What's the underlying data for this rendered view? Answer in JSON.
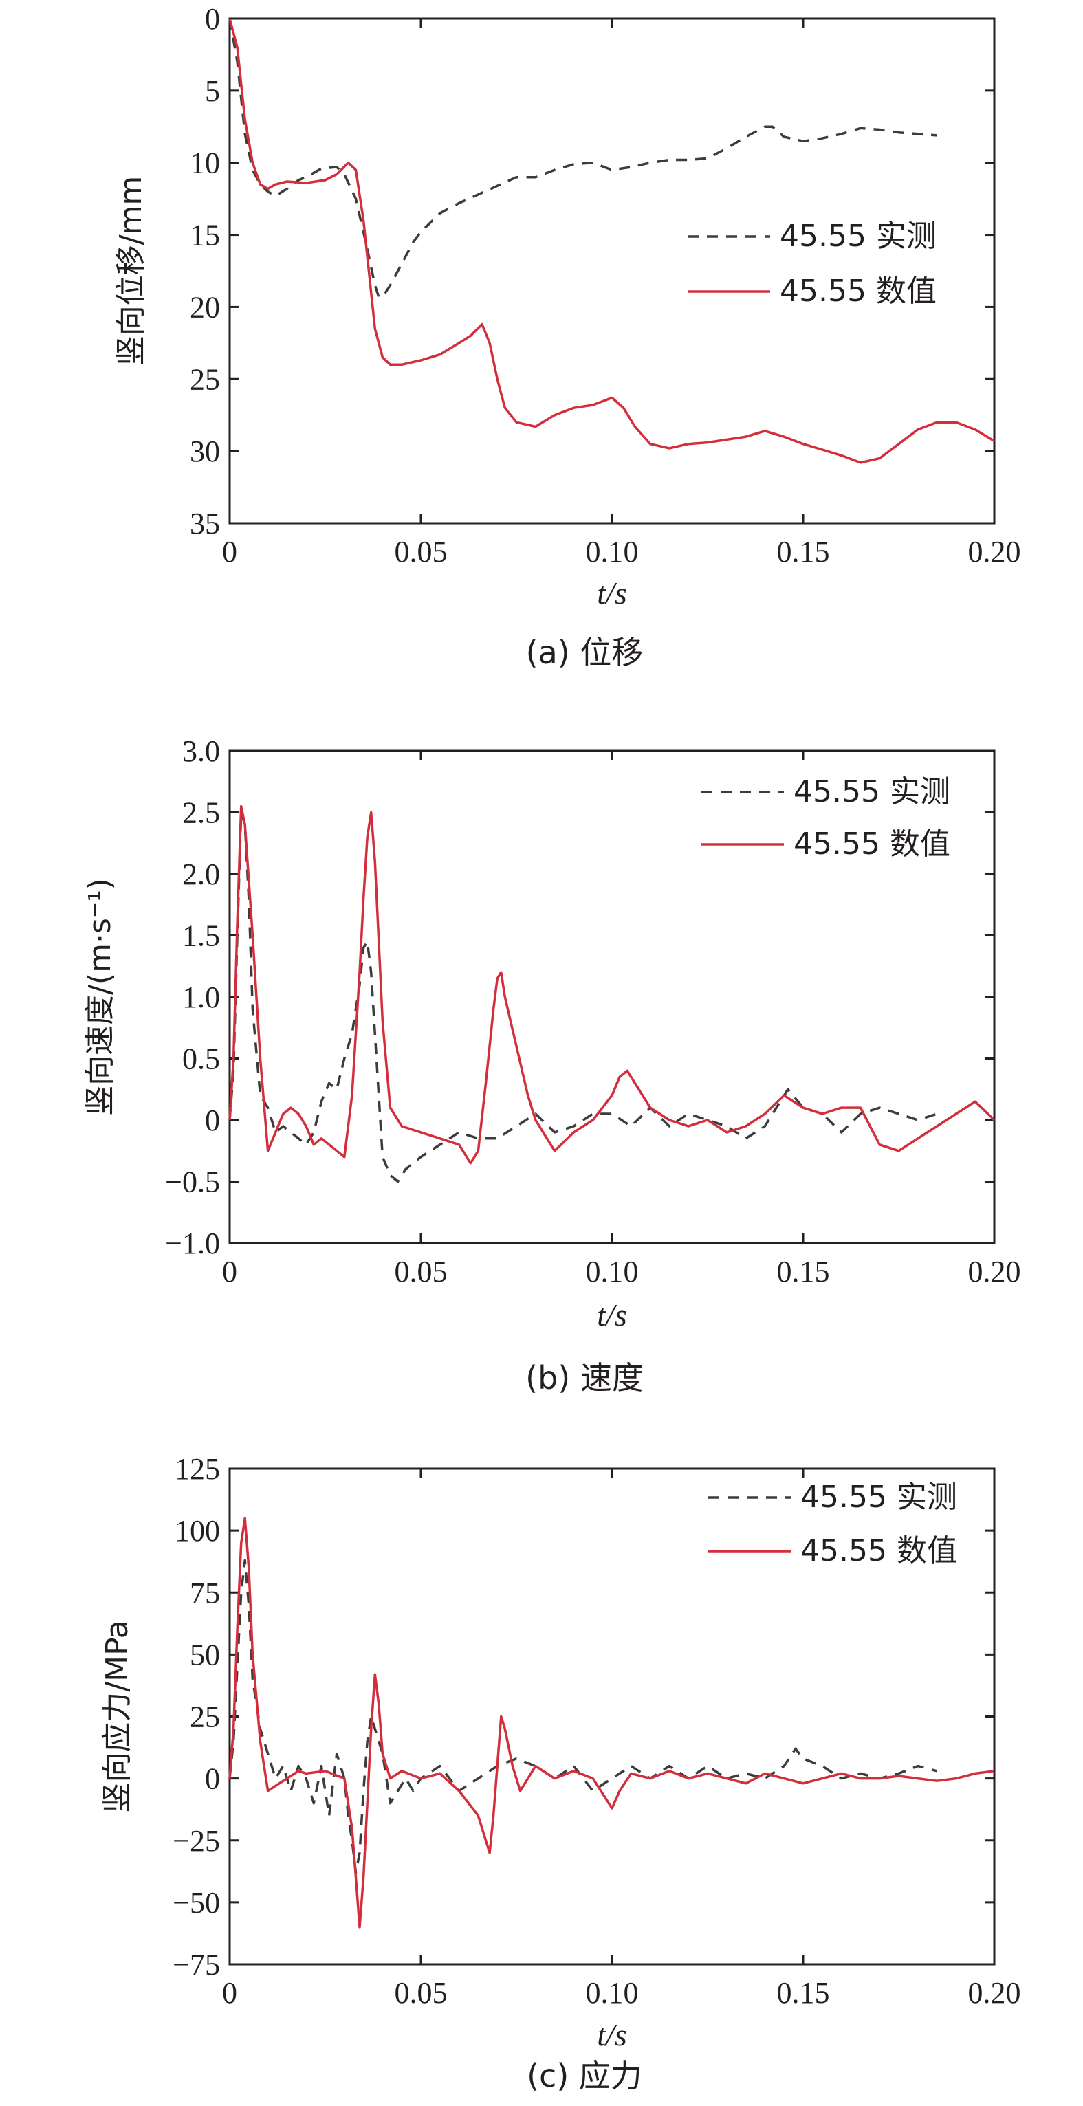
{
  "chart_data": [
    {
      "type": "line",
      "caption": "(a) 位移",
      "ylabel": "竖向位移/mm",
      "xlabel": "t/s",
      "xlim": [
        0,
        0.2
      ],
      "ylim": [
        0,
        35
      ],
      "y_inverted": true,
      "xticks": [
        0,
        0.05,
        0.1,
        0.15,
        0.2
      ],
      "xticklabels": [
        "0",
        "0.05",
        "0.10",
        "0.15",
        "0.20"
      ],
      "yticks": [
        0,
        5,
        10,
        15,
        20,
        25,
        30,
        35
      ],
      "yticklabels": [
        "0",
        "5",
        "10",
        "15",
        "20",
        "25",
        "30",
        "35"
      ],
      "legend_position": "right",
      "series": [
        {
          "name": "45.55 实测",
          "style": "dashed",
          "color": "#3c3c3c",
          "x": [
            0,
            0.002,
            0.004,
            0.006,
            0.008,
            0.01,
            0.012,
            0.015,
            0.018,
            0.02,
            0.024,
            0.028,
            0.03,
            0.033,
            0.036,
            0.038,
            0.039,
            0.04,
            0.042,
            0.045,
            0.048,
            0.05,
            0.055,
            0.06,
            0.065,
            0.07,
            0.075,
            0.08,
            0.085,
            0.09,
            0.095,
            0.1,
            0.105,
            0.11,
            0.115,
            0.12,
            0.125,
            0.13,
            0.135,
            0.14,
            0.142,
            0.145,
            0.15,
            0.155,
            0.16,
            0.165,
            0.17,
            0.175,
            0.18,
            0.185
          ],
          "values": [
            0,
            3,
            8,
            10.5,
            11.5,
            12,
            12.3,
            11.8,
            11.2,
            11,
            10.4,
            10.3,
            10.8,
            12.5,
            16,
            18.5,
            19.3,
            19.3,
            18.5,
            17,
            15.5,
            14.8,
            13.5,
            12.8,
            12.2,
            11.6,
            11,
            11,
            10.5,
            10.1,
            10,
            10.5,
            10.3,
            10,
            9.8,
            9.8,
            9.7,
            9,
            8.2,
            7.5,
            7.5,
            8.2,
            8.5,
            8.3,
            8,
            7.6,
            7.7,
            7.9,
            8,
            8.1
          ]
        },
        {
          "name": "45.55 数值",
          "style": "solid",
          "color": "#d42e3c",
          "x": [
            0,
            0.002,
            0.004,
            0.006,
            0.008,
            0.01,
            0.012,
            0.015,
            0.02,
            0.025,
            0.028,
            0.031,
            0.033,
            0.035,
            0.037,
            0.038,
            0.04,
            0.042,
            0.045,
            0.05,
            0.055,
            0.06,
            0.063,
            0.066,
            0.068,
            0.07,
            0.072,
            0.075,
            0.08,
            0.085,
            0.09,
            0.095,
            0.1,
            0.103,
            0.106,
            0.11,
            0.115,
            0.12,
            0.125,
            0.13,
            0.135,
            0.14,
            0.145,
            0.15,
            0.155,
            0.16,
            0.165,
            0.17,
            0.175,
            0.18,
            0.185,
            0.19,
            0.195,
            0.2
          ],
          "values": [
            0,
            2,
            7,
            10,
            11.5,
            11.8,
            11.5,
            11.3,
            11.4,
            11.2,
            10.8,
            10,
            10.5,
            14,
            19,
            21.5,
            23.5,
            24,
            24,
            23.7,
            23.3,
            22.5,
            22,
            21.2,
            22.5,
            25,
            27,
            28,
            28.3,
            27.5,
            27,
            26.8,
            26.3,
            27,
            28.3,
            29.5,
            29.8,
            29.5,
            29.4,
            29.2,
            29,
            28.6,
            29,
            29.5,
            29.9,
            30.3,
            30.8,
            30.5,
            29.5,
            28.5,
            28,
            28,
            28.5,
            29.3
          ]
        }
      ]
    },
    {
      "type": "line",
      "caption": "(b) 速度",
      "ylabel": "竖向速度/(m·s⁻¹)",
      "xlabel": "t/s",
      "xlim": [
        0,
        0.2
      ],
      "ylim": [
        -1,
        3
      ],
      "xticks": [
        0,
        0.05,
        0.1,
        0.15,
        0.2
      ],
      "xticklabels": [
        "0",
        "0.05",
        "0.10",
        "0.15",
        "0.20"
      ],
      "yticks": [
        -1,
        -0.5,
        0,
        0.5,
        1,
        1.5,
        2,
        2.5,
        3
      ],
      "yticklabels": [
        "−1.0",
        "−0.5",
        "0",
        "0.5",
        "1.0",
        "1.5",
        "2.0",
        "2.5",
        "3.0"
      ],
      "legend_position": "top-right",
      "series": [
        {
          "name": "45.55 实测",
          "style": "dashed",
          "color": "#3c3c3c",
          "x": [
            0,
            0.001,
            0.002,
            0.003,
            0.004,
            0.005,
            0.006,
            0.008,
            0.01,
            0.012,
            0.014,
            0.016,
            0.018,
            0.02,
            0.022,
            0.024,
            0.026,
            0.028,
            0.03,
            0.032,
            0.034,
            0.035,
            0.036,
            0.037,
            0.038,
            0.039,
            0.04,
            0.042,
            0.044,
            0.046,
            0.048,
            0.05,
            0.055,
            0.06,
            0.065,
            0.07,
            0.075,
            0.08,
            0.085,
            0.09,
            0.095,
            0.1,
            0.105,
            0.11,
            0.115,
            0.12,
            0.125,
            0.13,
            0.135,
            0.14,
            0.143,
            0.146,
            0.15,
            0.155,
            0.16,
            0.165,
            0.17,
            0.175,
            0.18,
            0.185
          ],
          "values": [
            0,
            0.4,
            1.5,
            2.5,
            2.4,
            1.8,
            0.9,
            0.2,
            0.1,
            -0.1,
            -0.05,
            -0.1,
            -0.15,
            -0.2,
            -0.1,
            0.15,
            0.3,
            0.25,
            0.5,
            0.7,
            1.1,
            1.4,
            1.45,
            1.2,
            0.7,
            0.2,
            -0.3,
            -0.45,
            -0.5,
            -0.4,
            -0.35,
            -0.3,
            -0.2,
            -0.1,
            -0.15,
            -0.15,
            -0.05,
            0.05,
            -0.1,
            -0.05,
            0.05,
            0.05,
            -0.05,
            0.1,
            -0.05,
            0.05,
            0.0,
            -0.05,
            -0.15,
            -0.05,
            0.1,
            0.25,
            0.1,
            0.05,
            -0.1,
            0.05,
            0.1,
            0.05,
            0.0,
            0.05
          ]
        },
        {
          "name": "45.55 数值",
          "style": "solid",
          "color": "#d42e3c",
          "x": [
            0,
            0.001,
            0.002,
            0.003,
            0.004,
            0.006,
            0.008,
            0.01,
            0.012,
            0.014,
            0.016,
            0.018,
            0.02,
            0.022,
            0.024,
            0.026,
            0.028,
            0.03,
            0.032,
            0.034,
            0.035,
            0.036,
            0.037,
            0.038,
            0.04,
            0.042,
            0.045,
            0.05,
            0.055,
            0.06,
            0.063,
            0.065,
            0.067,
            0.069,
            0.07,
            0.071,
            0.072,
            0.075,
            0.078,
            0.08,
            0.085,
            0.09,
            0.095,
            0.1,
            0.102,
            0.104,
            0.106,
            0.11,
            0.115,
            0.12,
            0.125,
            0.13,
            0.135,
            0.14,
            0.145,
            0.15,
            0.155,
            0.16,
            0.165,
            0.17,
            0.175,
            0.18,
            0.185,
            0.19,
            0.195,
            0.2
          ],
          "values": [
            0,
            0.5,
            1.6,
            2.55,
            2.4,
            1.5,
            0.5,
            -0.25,
            -0.1,
            0.05,
            0.1,
            0.05,
            -0.05,
            -0.2,
            -0.15,
            -0.2,
            -0.25,
            -0.3,
            0.2,
            1.2,
            1.8,
            2.3,
            2.5,
            2.1,
            0.8,
            0.1,
            -0.05,
            -0.1,
            -0.15,
            -0.2,
            -0.35,
            -0.25,
            0.3,
            0.9,
            1.15,
            1.2,
            1.0,
            0.6,
            0.2,
            0.0,
            -0.25,
            -0.1,
            0.0,
            0.2,
            0.35,
            0.4,
            0.3,
            0.1,
            0.0,
            -0.05,
            0.0,
            -0.1,
            -0.05,
            0.05,
            0.2,
            0.1,
            0.05,
            0.1,
            0.1,
            -0.2,
            -0.25,
            -0.15,
            -0.05,
            0.05,
            0.15,
            0.0
          ]
        }
      ]
    },
    {
      "type": "line",
      "caption": "(c) 应力",
      "ylabel": "竖向应力/MPa",
      "xlabel": "t/s",
      "xlim": [
        0,
        0.2
      ],
      "ylim": [
        -75,
        125
      ],
      "xticks": [
        0,
        0.05,
        0.1,
        0.15,
        0.2
      ],
      "xticklabels": [
        "0",
        "0.05",
        "0.10",
        "0.15",
        "0.20"
      ],
      "yticks": [
        -75,
        -50,
        -25,
        0,
        25,
        50,
        75,
        100,
        125
      ],
      "yticklabels": [
        "−75",
        "−50",
        "−25",
        "0",
        "25",
        "50",
        "75",
        "100",
        "125"
      ],
      "legend_position": "top-right",
      "series": [
        {
          "name": "45.55 实测",
          "style": "dashed",
          "color": "#3c3c3c",
          "x": [
            0,
            0.001,
            0.002,
            0.003,
            0.004,
            0.005,
            0.006,
            0.008,
            0.01,
            0.012,
            0.014,
            0.016,
            0.018,
            0.02,
            0.022,
            0.024,
            0.026,
            0.028,
            0.03,
            0.031,
            0.032,
            0.033,
            0.034,
            0.035,
            0.036,
            0.037,
            0.038,
            0.039,
            0.04,
            0.042,
            0.044,
            0.046,
            0.048,
            0.05,
            0.055,
            0.06,
            0.065,
            0.07,
            0.075,
            0.08,
            0.085,
            0.09,
            0.095,
            0.1,
            0.105,
            0.11,
            0.115,
            0.12,
            0.125,
            0.13,
            0.135,
            0.14,
            0.145,
            0.148,
            0.15,
            0.155,
            0.16,
            0.165,
            0.17,
            0.175,
            0.18,
            0.185
          ],
          "values": [
            0,
            15,
            45,
            75,
            88,
            70,
            40,
            20,
            10,
            0,
            5,
            -5,
            5,
            0,
            -10,
            5,
            -15,
            10,
            0,
            -15,
            -25,
            -38,
            -30,
            -5,
            15,
            25,
            20,
            15,
            10,
            -10,
            -5,
            0,
            -5,
            0,
            5,
            -5,
            0,
            5,
            8,
            5,
            0,
            5,
            -5,
            0,
            5,
            0,
            5,
            0,
            5,
            0,
            2,
            0,
            5,
            12,
            8,
            5,
            0,
            2,
            0,
            2,
            5,
            3
          ]
        },
        {
          "name": "45.55 数值",
          "style": "solid",
          "color": "#d42e3c",
          "x": [
            0,
            0.001,
            0.002,
            0.003,
            0.004,
            0.005,
            0.006,
            0.008,
            0.01,
            0.012,
            0.015,
            0.018,
            0.02,
            0.025,
            0.03,
            0.032,
            0.033,
            0.034,
            0.035,
            0.036,
            0.037,
            0.038,
            0.039,
            0.04,
            0.042,
            0.045,
            0.05,
            0.055,
            0.06,
            0.065,
            0.067,
            0.068,
            0.069,
            0.07,
            0.071,
            0.072,
            0.074,
            0.076,
            0.08,
            0.085,
            0.09,
            0.095,
            0.1,
            0.102,
            0.105,
            0.11,
            0.115,
            0.12,
            0.125,
            0.13,
            0.135,
            0.14,
            0.145,
            0.15,
            0.155,
            0.16,
            0.165,
            0.17,
            0.175,
            0.18,
            0.185,
            0.19,
            0.195,
            0.2
          ],
          "values": [
            0,
            20,
            60,
            95,
            105,
            85,
            50,
            15,
            -5,
            -3,
            0,
            3,
            2,
            3,
            0,
            -20,
            -40,
            -60,
            -40,
            -10,
            20,
            42,
            30,
            10,
            0,
            3,
            0,
            2,
            -5,
            -15,
            -25,
            -30,
            -15,
            5,
            25,
            20,
            5,
            -5,
            5,
            0,
            3,
            0,
            -12,
            -5,
            2,
            0,
            3,
            0,
            2,
            0,
            -2,
            2,
            0,
            -2,
            0,
            2,
            0,
            0,
            1,
            0,
            -1,
            0,
            2,
            3
          ]
        }
      ]
    }
  ]
}
